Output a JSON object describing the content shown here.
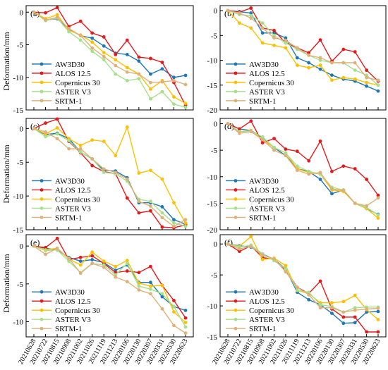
{
  "figure": {
    "ylabel": "Deformation/mm",
    "dates": [
      "20210628",
      "20210722",
      "20210815",
      "20210908",
      "20211002",
      "20211026",
      "20211119",
      "20211213",
      "20220106",
      "20220130",
      "20220307",
      "20220331",
      "20220530",
      "20220623"
    ],
    "series_names": [
      "AW3D30",
      "ALOS 12.5",
      "Copernicus 30",
      "ASTER V3",
      "SRTM-1"
    ],
    "series_colors": [
      "#1f77b4",
      "#e31a1c",
      "#ffc000",
      "#a6e08a",
      "#e0b07a"
    ]
  },
  "chart_data": [
    {
      "type": "line",
      "panel_label": "(a)",
      "ylim": [
        -15,
        1
      ],
      "yticks": [
        0,
        -5,
        -10,
        -15
      ],
      "series": [
        {
          "name": "AW3D30",
          "values": [
            0,
            -1.2,
            -1.0,
            -2.6,
            -3.6,
            -4.0,
            -5.2,
            -6.3,
            -6.5,
            -7.5,
            -9.5,
            -8.7,
            -10.0,
            -9.7
          ]
        },
        {
          "name": "ALOS 12.5",
          "values": [
            0,
            -0.1,
            0.7,
            -2.2,
            -1.4,
            -3.2,
            -3.8,
            -6.5,
            -4.3,
            -6.9,
            -7.1,
            -7.7,
            -10.8,
            -14.3
          ]
        },
        {
          "name": "Copernicus 30",
          "values": [
            0,
            -1.0,
            -0.4,
            -2.8,
            -3.5,
            -4.6,
            -6.2,
            -7.3,
            -8.5,
            -9.5,
            -11.8,
            -10.5,
            -13.0,
            -14.0
          ]
        },
        {
          "name": "ASTER V3",
          "values": [
            0,
            -1.3,
            -0.9,
            -3.0,
            -4.3,
            -6.0,
            -7.3,
            -9.5,
            -10.5,
            -10.2,
            -13.3,
            -12.2,
            -14.1,
            -14.6
          ]
        },
        {
          "name": "SRTM-1",
          "values": [
            0,
            -1.2,
            -0.8,
            -2.5,
            -3.6,
            -5.5,
            -6.8,
            -8.2,
            -9.2,
            -9.5,
            -10.8,
            -10.7,
            -10.5,
            -11.1
          ]
        }
      ]
    },
    {
      "type": "line",
      "panel_label": "(b)",
      "ylim": [
        -20,
        1
      ],
      "yticks": [
        0,
        -5,
        -10,
        -15,
        -20
      ],
      "series": [
        {
          "name": "AW3D30",
          "values": [
            0,
            -0.2,
            -0.5,
            -4.5,
            -4.5,
            -5.5,
            -9.5,
            -10.5,
            -11.8,
            -13.0,
            -13.8,
            -14.2,
            -15.2,
            -16.2
          ]
        },
        {
          "name": "ALOS 12.5",
          "values": [
            0,
            -0.3,
            0.5,
            -3.5,
            -4.0,
            -6.5,
            -7.5,
            -8.5,
            -5.9,
            -10.2,
            -7.8,
            -8.3,
            -12.0,
            -14.2
          ]
        },
        {
          "name": "Copernicus 30",
          "values": [
            0,
            -2.5,
            -3.5,
            -6.5,
            -7.0,
            -7.5,
            -11.0,
            -11.5,
            -11.0,
            -14.0,
            -13.5,
            -13.8,
            -14.5,
            -15.0
          ]
        },
        {
          "name": "ASTER V3",
          "values": [
            0,
            -0.8,
            -1.0,
            -2.5,
            -5.0,
            -6.5,
            -7.8,
            -9.0,
            -10.0,
            -10.5,
            -10.5,
            -12.0,
            -13.0,
            -15.0
          ]
        },
        {
          "name": "SRTM-1",
          "values": [
            0,
            -0.5,
            -1.5,
            -3.5,
            -5.5,
            -6.0,
            -7.5,
            -9.0,
            -9.5,
            -10.5,
            -10.5,
            -10.5,
            -13.5,
            -14.0
          ]
        }
      ]
    },
    {
      "type": "line",
      "panel_label": "(c)",
      "ylim": [
        -15,
        1.5
      ],
      "yticks": [
        0,
        -5,
        -10,
        -15
      ],
      "series": [
        {
          "name": "AW3D30",
          "values": [
            0,
            -0.9,
            -0.7,
            -1.5,
            -3.5,
            -4.5,
            -6.2,
            -6.3,
            -7.3,
            -11.0,
            -11.0,
            -11.6,
            -13.5,
            -14.2
          ]
        },
        {
          "name": "ALOS 12.5",
          "values": [
            0,
            0.8,
            1.4,
            -1.9,
            -3.6,
            -5.5,
            -6.4,
            -6.7,
            -10.3,
            -12.5,
            -12.2,
            -14.6,
            -14.7,
            -14.3
          ]
        },
        {
          "name": "Copernicus 30",
          "values": [
            0,
            -0.8,
            0.1,
            -1.5,
            -2.5,
            -1.7,
            -1.9,
            -4.0,
            0.2,
            -6.6,
            -6.2,
            -7.5,
            -11.0,
            -14.0
          ]
        },
        {
          "name": "ASTER V3",
          "values": [
            0,
            -1.2,
            -0.8,
            -1.8,
            -3.5,
            -4.5,
            -6.5,
            -6.7,
            -7.8,
            -10.5,
            -10.8,
            -12.5,
            -14.0,
            -14.5
          ]
        },
        {
          "name": "SRTM-1",
          "values": [
            0,
            -0.5,
            -1.5,
            -3.0,
            -3.0,
            -4.5,
            -6.0,
            -6.5,
            -7.5,
            -10.8,
            -11.5,
            -13.2,
            -14.5,
            -13.5
          ]
        }
      ]
    },
    {
      "type": "line",
      "panel_label": "(d)",
      "ylim": [
        -20,
        1
      ],
      "yticks": [
        0,
        -5,
        -10,
        -15,
        -20
      ],
      "series": [
        {
          "name": "AW3D30",
          "values": [
            0,
            -1.0,
            -1.3,
            -2.6,
            -4.5,
            -6.0,
            -8.5,
            -9.0,
            -10.5,
            -13.2,
            -12.5,
            -15.0,
            -16.0,
            -17.1
          ]
        },
        {
          "name": "ALOS 12.5",
          "values": [
            0,
            -1.0,
            0.5,
            -3.6,
            -2.8,
            -4.8,
            -5.2,
            -7.0,
            -3.3,
            -9.0,
            -8.0,
            -8.5,
            -10.5,
            -13.5
          ]
        },
        {
          "name": "Copernicus 30",
          "values": [
            0,
            -1.5,
            -1.3,
            -3.0,
            -4.5,
            -5.5,
            -8.5,
            -9.2,
            -9.5,
            -12.5,
            -12.8,
            -15.0,
            -16.0,
            -17.8
          ]
        },
        {
          "name": "ASTER V3",
          "values": [
            0,
            -1.5,
            -1.4,
            -2.5,
            -4.5,
            -5.5,
            -8.0,
            -9.0,
            -9.5,
            -12.0,
            -12.5,
            -15.0,
            -15.8,
            -17.2
          ]
        },
        {
          "name": "SRTM-1",
          "values": [
            0,
            -1.8,
            -1.5,
            -3.0,
            -5.0,
            -6.0,
            -8.8,
            -9.5,
            -9.2,
            -12.3,
            -12.6,
            -15.0,
            -15.5,
            -14.0
          ]
        }
      ]
    },
    {
      "type": "line",
      "panel_label": "(e)",
      "ylim": [
        -12,
        1.5
      ],
      "yticks": [
        0,
        -5,
        -10
      ],
      "series": [
        {
          "name": "AW3D30",
          "values": [
            0,
            -0.3,
            -0.5,
            -1.5,
            -2.0,
            -1.8,
            -2.2,
            -3.2,
            -2.5,
            -4.8,
            -4.8,
            -6.7,
            -8.0,
            -8.5
          ]
        },
        {
          "name": "ALOS 12.5",
          "values": [
            0,
            -0.2,
            1.0,
            -1.8,
            -1.5,
            -1.3,
            -2.3,
            -3.5,
            -3.3,
            -3.5,
            -2.7,
            -5.2,
            -7.2,
            -9.5
          ]
        },
        {
          "name": "Copernicus 30",
          "values": [
            0,
            -0.5,
            -0.3,
            -1.7,
            -2.5,
            -0.8,
            -2.0,
            -2.7,
            -1.9,
            -4.9,
            -5.3,
            -5.2,
            -8.7,
            -10.1
          ]
        },
        {
          "name": "ASTER V3",
          "values": [
            0,
            -0.6,
            -0.5,
            -2.0,
            -3.5,
            -2.3,
            -2.5,
            -3.8,
            -2.3,
            -5.3,
            -5.7,
            -6.3,
            -8.0,
            -10.7
          ]
        },
        {
          "name": "SRTM-1",
          "values": [
            0,
            -1.1,
            -0.3,
            -1.6,
            -3.6,
            -2.3,
            -2.8,
            -4.1,
            -4.7,
            -5.8,
            -6.3,
            -8.3,
            -10.5,
            -11.5
          ]
        }
      ]
    },
    {
      "type": "line",
      "panel_label": "(f)",
      "ylim": [
        -15,
        1.5
      ],
      "yticks": [
        0,
        -5,
        -10,
        -15
      ],
      "series": [
        {
          "name": "AW3D30",
          "values": [
            0,
            -0.3,
            -0.5,
            -1.6,
            -2.5,
            -4.0,
            -7.8,
            -9.0,
            -9.8,
            -11.2,
            -12.8,
            -12.7,
            -11.0,
            -10.9
          ]
        },
        {
          "name": "ALOS 12.5",
          "values": [
            0,
            -1.2,
            -0.3,
            -2.2,
            -2.5,
            -4.2,
            -7.0,
            -8.0,
            -6.0,
            -10.5,
            -11.8,
            -11.8,
            -14.2,
            -14.2
          ]
        },
        {
          "name": "Copernicus 30",
          "values": [
            0,
            -0.4,
            1.2,
            -2.5,
            -2.3,
            -3.5,
            -7.5,
            -8.0,
            -9.5,
            -9.5,
            -9.3,
            -8.3,
            -10.6,
            -12.2
          ]
        },
        {
          "name": "ASTER V3",
          "values": [
            0,
            -0.5,
            -0.2,
            -1.6,
            -2.7,
            -4.0,
            -7.5,
            -7.8,
            -9.8,
            -10.1,
            -11.0,
            -10.3,
            -10.2,
            -10.2
          ]
        },
        {
          "name": "SRTM-1",
          "values": [
            0,
            -0.8,
            -0.4,
            -1.8,
            -2.4,
            -4.5,
            -7.0,
            -8.2,
            -10.3,
            -10.3,
            -11.0,
            -10.7,
            -10.5,
            -10.4
          ]
        }
      ]
    }
  ]
}
